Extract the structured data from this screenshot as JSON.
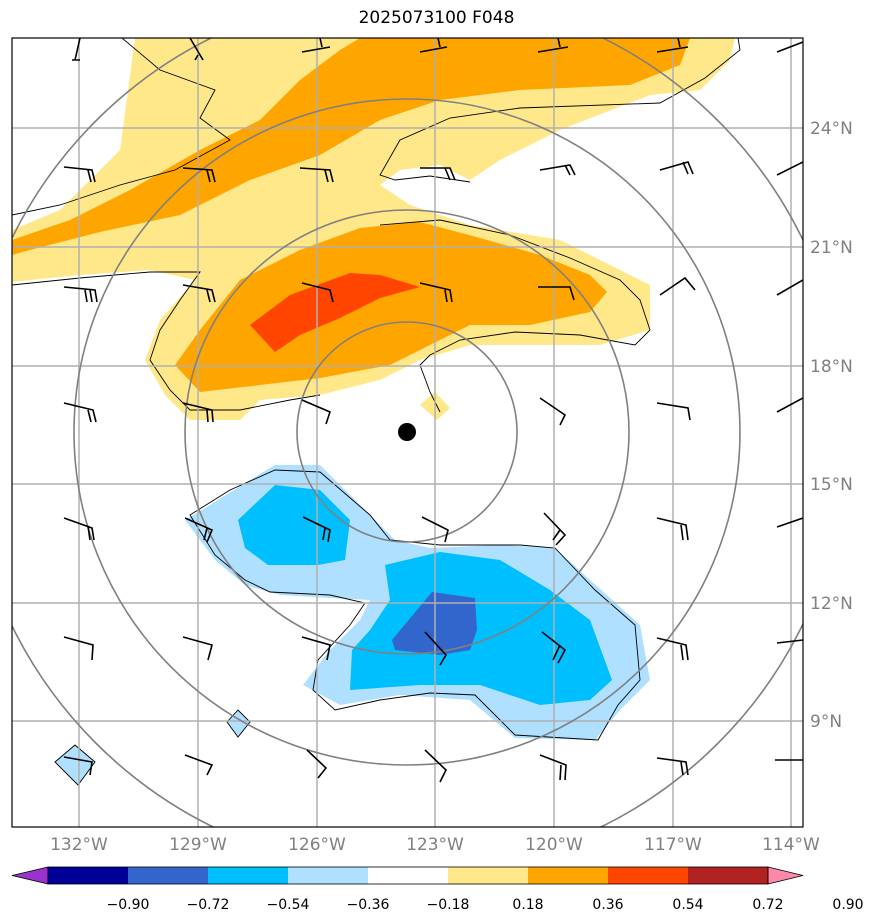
{
  "title": "2025073100 F048",
  "lon_ticks": [
    "132°W",
    "129°W",
    "126°W",
    "123°W",
    "120°W",
    "117°W",
    "114°W"
  ],
  "lat_ticks": [
    "24°N",
    "21°N",
    "18°N",
    "15°N",
    "12°N",
    "9°N"
  ],
  "colorbar": {
    "labels": [
      "−0.90",
      "−0.72",
      "−0.54",
      "−0.36",
      "−0.18",
      "0.18",
      "0.36",
      "0.54",
      "0.72",
      "0.90"
    ],
    "colors": [
      "#9933cc",
      "#000099",
      "#3366cc",
      "#00bfff",
      "#b0e0ff",
      "#ffffff",
      "#ffe88a",
      "#ffa500",
      "#ff4500",
      "#b22222",
      "#ff88aa"
    ]
  },
  "colors": {
    "light_yellow": "#ffe88a",
    "orange": "#ffa500",
    "red_orange": "#ff4500",
    "light_blue": "#b0e0ff",
    "sky_blue": "#00bfff",
    "royal_blue": "#3366cc",
    "gridline": "#b0b0b0",
    "range_ring": "#808080"
  },
  "storm_center": {
    "lon": "123.7°W",
    "lat": "16.3°N"
  }
}
